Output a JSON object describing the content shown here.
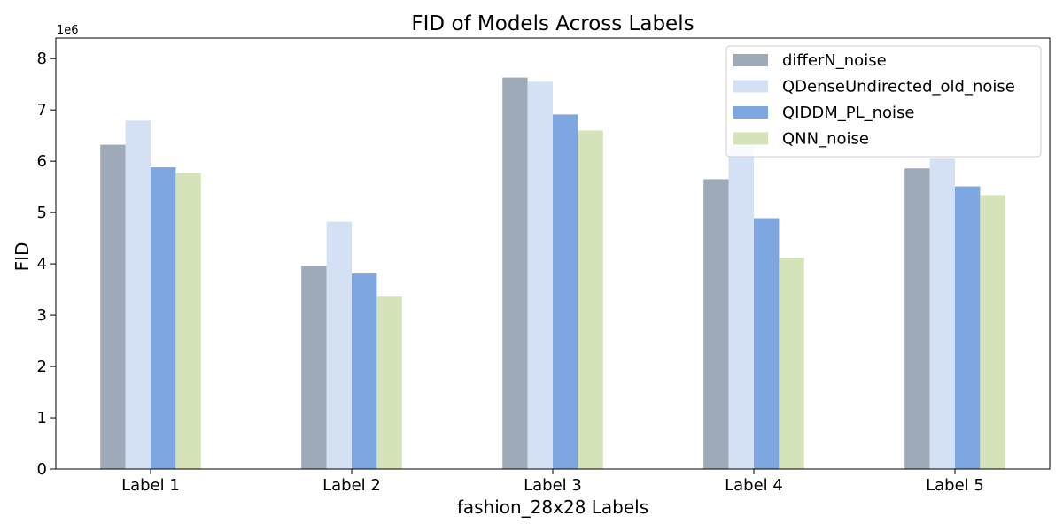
{
  "chart_data": {
    "type": "bar",
    "title": "FID of Models Across Labels",
    "xlabel": "fashion_28x28 Labels",
    "ylabel": "FID",
    "y_offset_text": "1e6",
    "categories": [
      "Label 1",
      "Label 2",
      "Label 3",
      "Label 4",
      "Label 5"
    ],
    "y_ticks": [
      "0",
      "1",
      "2",
      "3",
      "4",
      "5",
      "6",
      "7",
      "8"
    ],
    "ylim": [
      0,
      8.4
    ],
    "y_scale": 1000000,
    "legend_position": "top-right",
    "grid": false,
    "series": [
      {
        "name": "differN_noise",
        "color": "#9eaab8",
        "values": [
          6.32,
          3.96,
          7.63,
          5.65,
          5.86
        ]
      },
      {
        "name": "QDenseUndirected_old_noise",
        "color": "#d4e1f5",
        "values": [
          6.79,
          4.82,
          7.55,
          6.3,
          6.05
        ]
      },
      {
        "name": "QIDDM_PL_noise",
        "color": "#7ea6e0",
        "values": [
          5.88,
          3.81,
          6.91,
          4.89,
          5.51
        ]
      },
      {
        "name": "QNN_noise",
        "color": "#d5e4b8",
        "values": [
          5.77,
          3.36,
          6.6,
          4.12,
          5.34
        ]
      }
    ]
  }
}
